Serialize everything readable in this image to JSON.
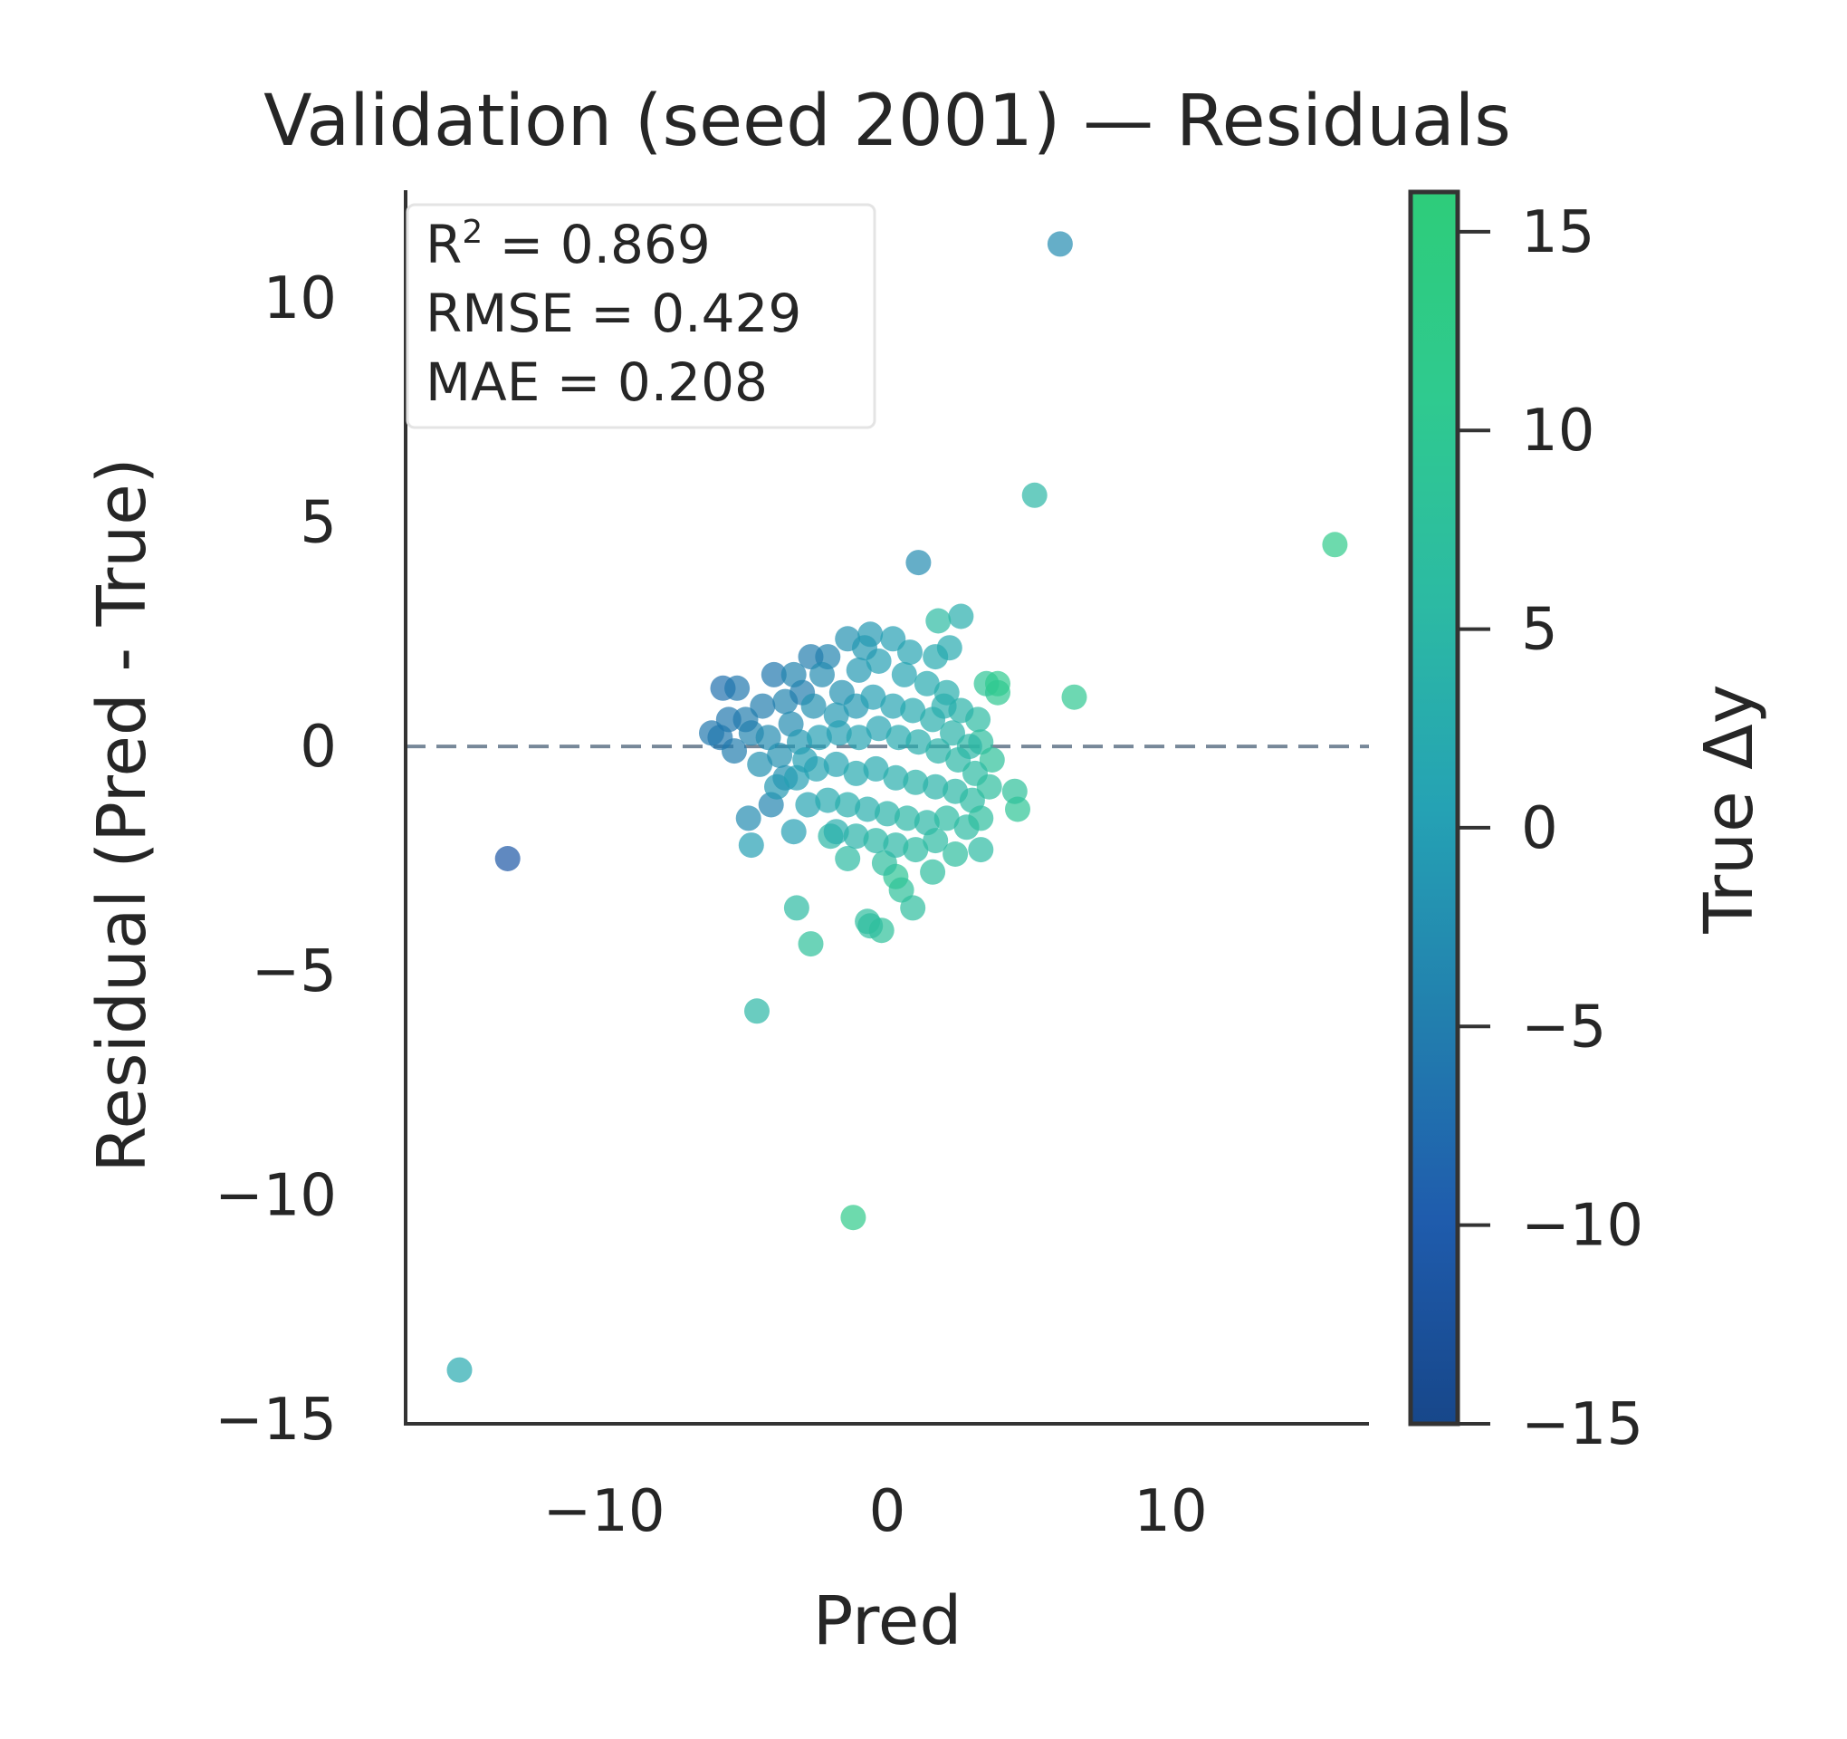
{
  "chart_data": {
    "type": "scatter",
    "title": "Validation (seed 2001) — Residuals",
    "xlabel": "Pred",
    "ylabel": "Residual (Pred - True)",
    "xlim": [
      -17,
      17
    ],
    "ylim": [
      -15.1,
      12.4
    ],
    "xticks": [
      -10,
      0,
      10
    ],
    "yticks": [
      -15,
      -10,
      -5,
      0,
      5,
      10
    ],
    "tick_format": {
      "-15": "−15",
      "-10": "−10",
      "-5": "−5",
      "0": "0",
      "5": "5",
      "10": "10",
      "15": "15"
    },
    "reference_line": {
      "y": 0,
      "style": "dashed",
      "color": "#778899"
    },
    "grid": false,
    "stats_box": {
      "position": "top-left",
      "r2_label": "R",
      "r2_sup": "2",
      "r2_value": " = 0.869",
      "rmse": "RMSE = 0.429",
      "mae": "MAE = 0.208"
    },
    "colorbar": {
      "label": "True Δy",
      "range": [
        -15,
        16
      ],
      "ticks": [
        -15,
        -10,
        -5,
        0,
        5,
        10,
        15
      ],
      "colormap": [
        "#17478a",
        "#1f5cad",
        "#2280ae",
        "#25a2b4",
        "#2cbaa3",
        "#2fca8f",
        "#2ecc7a"
      ]
    },
    "points": [
      {
        "x": 6.1,
        "y": 11.2,
        "t": -3
      },
      {
        "x": 15.8,
        "y": 4.5,
        "t": 12
      },
      {
        "x": 5.2,
        "y": 5.6,
        "t": 5
      },
      {
        "x": 1.1,
        "y": 4.1,
        "t": -3
      },
      {
        "x": 6.6,
        "y": 1.1,
        "t": 10
      },
      {
        "x": 2.6,
        "y": 2.9,
        "t": 3
      },
      {
        "x": 1.8,
        "y": 2.8,
        "t": 6
      },
      {
        "x": -13.4,
        "y": -2.5,
        "t": -11
      },
      {
        "x": -15.1,
        "y": -13.9,
        "t": 2
      },
      {
        "x": -4.6,
        "y": -5.9,
        "t": 5
      },
      {
        "x": -1.2,
        "y": -10.5,
        "t": 12
      },
      {
        "x": -3.2,
        "y": -3.6,
        "t": 6
      },
      {
        "x": -2.7,
        "y": -4.4,
        "t": 8
      },
      {
        "x": -0.7,
        "y": -3.9,
        "t": 7
      },
      {
        "x": -0.2,
        "y": -4.1,
        "t": 8
      },
      {
        "x": 0.9,
        "y": -3.6,
        "t": 7
      },
      {
        "x": -0.6,
        "y": -4.0,
        "t": 7
      },
      {
        "x": 0.5,
        "y": -3.2,
        "t": 8
      },
      {
        "x": 4.6,
        "y": -1.4,
        "t": 9
      },
      {
        "x": 4.5,
        "y": -1.0,
        "t": 8
      },
      {
        "x": 3.9,
        "y": 1.2,
        "t": 10
      },
      {
        "x": 3.5,
        "y": 1.4,
        "t": 9
      },
      {
        "x": 3.9,
        "y": 1.4,
        "t": 11
      },
      {
        "x": -5.8,
        "y": 1.3,
        "t": -7
      },
      {
        "x": -5.3,
        "y": 1.3,
        "t": -6
      },
      {
        "x": -6.2,
        "y": 0.3,
        "t": -6
      },
      {
        "x": -4.9,
        "y": -1.6,
        "t": -3
      },
      {
        "x": -4.8,
        "y": -2.2,
        "t": 0
      },
      {
        "x": -3.3,
        "y": -1.9,
        "t": 0
      },
      {
        "x": -4.1,
        "y": -1.3,
        "t": -4
      },
      {
        "x": -4.0,
        "y": 1.6,
        "t": -6
      },
      {
        "x": -1.4,
        "y": 2.4,
        "t": -2
      },
      {
        "x": -0.6,
        "y": 2.5,
        "t": -1
      },
      {
        "x": 0.2,
        "y": 2.4,
        "t": 0
      },
      {
        "x": 2.2,
        "y": 2.2,
        "t": 2
      },
      {
        "x": -2.1,
        "y": 2.0,
        "t": -4
      },
      {
        "x": -2.7,
        "y": 2.0,
        "t": -5
      },
      {
        "x": 3.2,
        "y": 0.6,
        "t": 6
      },
      {
        "x": 3.3,
        "y": 0.1,
        "t": 7
      },
      {
        "x": 3.7,
        "y": -0.3,
        "t": 8
      },
      {
        "x": 2.4,
        "y": -2.4,
        "t": 7
      },
      {
        "x": 3.3,
        "y": -2.3,
        "t": 6
      },
      {
        "x": 1.6,
        "y": -2.8,
        "t": 7
      },
      {
        "x": 0.3,
        "y": -2.9,
        "t": 9
      },
      {
        "x": -0.1,
        "y": -2.6,
        "t": 7
      },
      {
        "x": -1.4,
        "y": -2.5,
        "t": 6
      },
      {
        "x": -2.0,
        "y": -2.0,
        "t": 5
      },
      {
        "x": -3.6,
        "y": -0.7,
        "t": -2
      },
      {
        "x": -4.8,
        "y": 0.3,
        "t": -4
      },
      {
        "x": -5.4,
        "y": -0.1,
        "t": -5
      },
      {
        "x": -5.0,
        "y": 0.6,
        "t": -5
      },
      {
        "x": -3.6,
        "y": 1.0,
        "t": -4
      },
      {
        "x": -3.0,
        "y": 1.2,
        "t": -5
      },
      {
        "x": -2.3,
        "y": 1.6,
        "t": -3
      },
      {
        "x": -1.6,
        "y": 1.2,
        "t": -2
      },
      {
        "x": -1.0,
        "y": 1.7,
        "t": -1
      },
      {
        "x": -0.3,
        "y": 1.9,
        "t": 0
      },
      {
        "x": 0.6,
        "y": 1.6,
        "t": 1
      },
      {
        "x": 1.4,
        "y": 1.4,
        "t": 2
      },
      {
        "x": 2.1,
        "y": 1.2,
        "t": 3
      },
      {
        "x": 2.6,
        "y": 0.8,
        "t": 4
      },
      {
        "x": -4.2,
        "y": 0.2,
        "t": -3
      },
      {
        "x": -3.4,
        "y": 0.5,
        "t": -3
      },
      {
        "x": -2.6,
        "y": 0.9,
        "t": -2
      },
      {
        "x": -1.8,
        "y": 0.7,
        "t": -1
      },
      {
        "x": -1.1,
        "y": 0.9,
        "t": -1
      },
      {
        "x": -0.5,
        "y": 1.1,
        "t": 0
      },
      {
        "x": 0.2,
        "y": 0.9,
        "t": 1
      },
      {
        "x": 0.9,
        "y": 0.8,
        "t": 2
      },
      {
        "x": 1.6,
        "y": 0.6,
        "t": 3
      },
      {
        "x": 2.3,
        "y": 0.3,
        "t": 4
      },
      {
        "x": 2.9,
        "y": 0.0,
        "t": 5
      },
      {
        "x": -4.5,
        "y": -0.4,
        "t": -2
      },
      {
        "x": -3.8,
        "y": -0.2,
        "t": -2
      },
      {
        "x": -3.1,
        "y": 0.1,
        "t": -1
      },
      {
        "x": -2.4,
        "y": 0.2,
        "t": 0
      },
      {
        "x": -1.7,
        "y": 0.3,
        "t": 0
      },
      {
        "x": -1.0,
        "y": 0.2,
        "t": 1
      },
      {
        "x": -0.3,
        "y": 0.4,
        "t": 1
      },
      {
        "x": 0.4,
        "y": 0.2,
        "t": 2
      },
      {
        "x": 1.1,
        "y": 0.1,
        "t": 3
      },
      {
        "x": 1.8,
        "y": -0.1,
        "t": 4
      },
      {
        "x": 2.5,
        "y": -0.3,
        "t": 5
      },
      {
        "x": 3.1,
        "y": -0.6,
        "t": 6
      },
      {
        "x": -3.9,
        "y": -0.9,
        "t": -1
      },
      {
        "x": -3.2,
        "y": -0.7,
        "t": 0
      },
      {
        "x": -2.5,
        "y": -0.5,
        "t": 1
      },
      {
        "x": -1.8,
        "y": -0.4,
        "t": 1
      },
      {
        "x": -1.1,
        "y": -0.6,
        "t": 2
      },
      {
        "x": -0.4,
        "y": -0.5,
        "t": 2
      },
      {
        "x": 0.3,
        "y": -0.7,
        "t": 3
      },
      {
        "x": 1.0,
        "y": -0.8,
        "t": 4
      },
      {
        "x": 1.7,
        "y": -0.9,
        "t": 4
      },
      {
        "x": 2.4,
        "y": -1.0,
        "t": 5
      },
      {
        "x": 3.0,
        "y": -1.2,
        "t": 6
      },
      {
        "x": 3.6,
        "y": -0.9,
        "t": 7
      },
      {
        "x": -2.8,
        "y": -1.3,
        "t": 1
      },
      {
        "x": -2.1,
        "y": -1.2,
        "t": 2
      },
      {
        "x": -1.4,
        "y": -1.3,
        "t": 3
      },
      {
        "x": -0.7,
        "y": -1.4,
        "t": 3
      },
      {
        "x": 0.0,
        "y": -1.5,
        "t": 4
      },
      {
        "x": 0.7,
        "y": -1.6,
        "t": 5
      },
      {
        "x": 1.4,
        "y": -1.7,
        "t": 5
      },
      {
        "x": 2.1,
        "y": -1.6,
        "t": 6
      },
      {
        "x": 2.8,
        "y": -1.8,
        "t": 6
      },
      {
        "x": -1.8,
        "y": -1.9,
        "t": 3
      },
      {
        "x": -1.1,
        "y": -2.0,
        "t": 4
      },
      {
        "x": -0.4,
        "y": -2.1,
        "t": 5
      },
      {
        "x": 0.3,
        "y": -2.2,
        "t": 5
      },
      {
        "x": 1.0,
        "y": -2.3,
        "t": 6
      },
      {
        "x": 1.7,
        "y": -2.1,
        "t": 6
      },
      {
        "x": 0.8,
        "y": 2.1,
        "t": 1
      },
      {
        "x": 1.7,
        "y": 2.0,
        "t": 2
      },
      {
        "x": -0.8,
        "y": 2.2,
        "t": -1
      },
      {
        "x": -3.3,
        "y": 1.6,
        "t": -4
      },
      {
        "x": -4.4,
        "y": 0.9,
        "t": -5
      },
      {
        "x": -5.6,
        "y": 0.6,
        "t": -6
      },
      {
        "x": -5.9,
        "y": 0.2,
        "t": -6
      },
      {
        "x": -2.9,
        "y": -0.3,
        "t": 0
      },
      {
        "x": 3.3,
        "y": -1.6,
        "t": 7
      },
      {
        "x": 2.0,
        "y": 0.9,
        "t": 3
      }
    ]
  }
}
